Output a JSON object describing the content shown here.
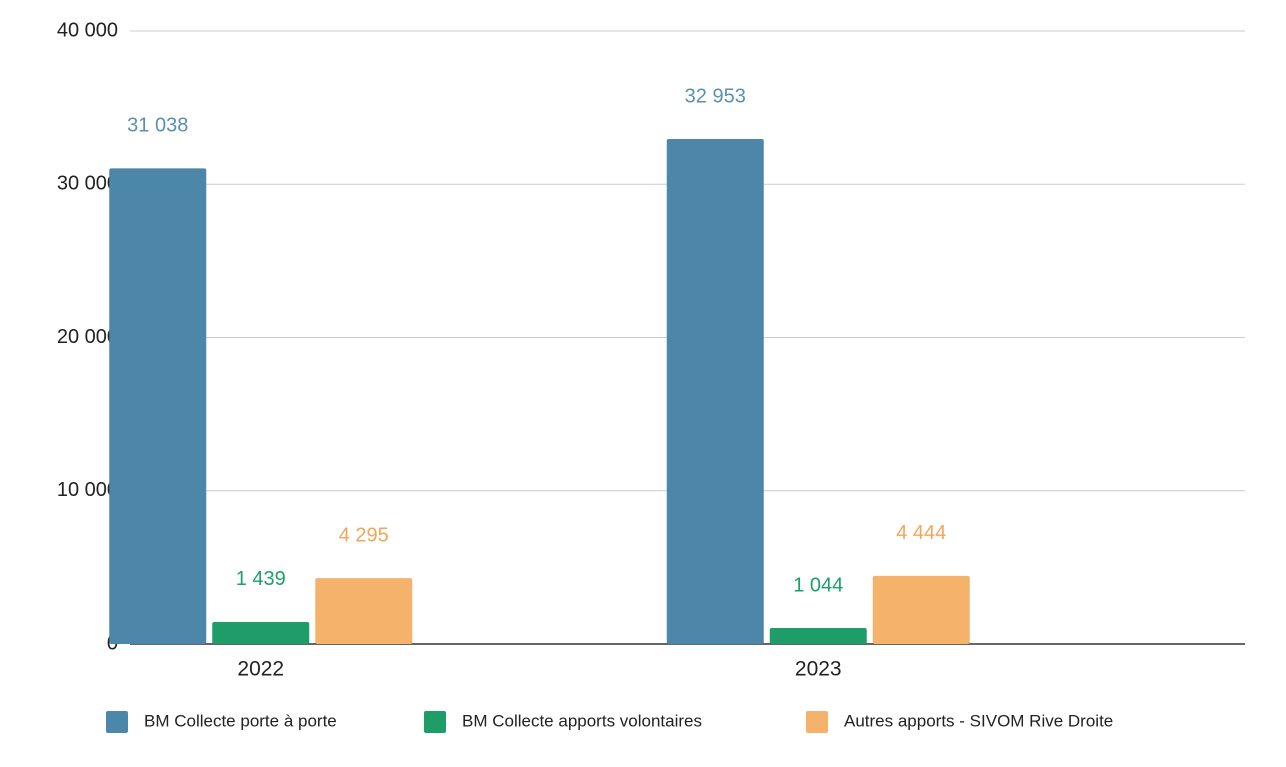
{
  "chart_data": {
    "type": "bar",
    "categories": [
      "2022",
      "2023"
    ],
    "series": [
      {
        "name": "BM Collecte porte à porte",
        "color": "#4c87a9",
        "label_color": "#5a90b2",
        "values": [
          31038,
          32953
        ],
        "value_labels": [
          "31 038",
          "32 953"
        ]
      },
      {
        "name": "BM Collecte apports volontaires",
        "color": "#1f9d69",
        "label_color": "#1c9f6b",
        "values": [
          1439,
          1044
        ],
        "value_labels": [
          "1 439",
          "1 044"
        ]
      },
      {
        "name": "Autres apports - SIVOM Rive Droite",
        "color": "#f5b26b",
        "label_color": "#f3a559",
        "values": [
          4295,
          4444
        ],
        "value_labels": [
          "4 295",
          "4 444"
        ]
      }
    ],
    "ylim": [
      0,
      40000
    ],
    "yticks": [
      0,
      {
        "value": 10000,
        "label": "10 000"
      },
      {
        "value": 20000,
        "label": "20 000"
      },
      {
        "value": 30000,
        "label": "30 000"
      },
      {
        "value": 40000,
        "label": "40 000"
      }
    ],
    "grid": true,
    "legend": "bottom"
  }
}
